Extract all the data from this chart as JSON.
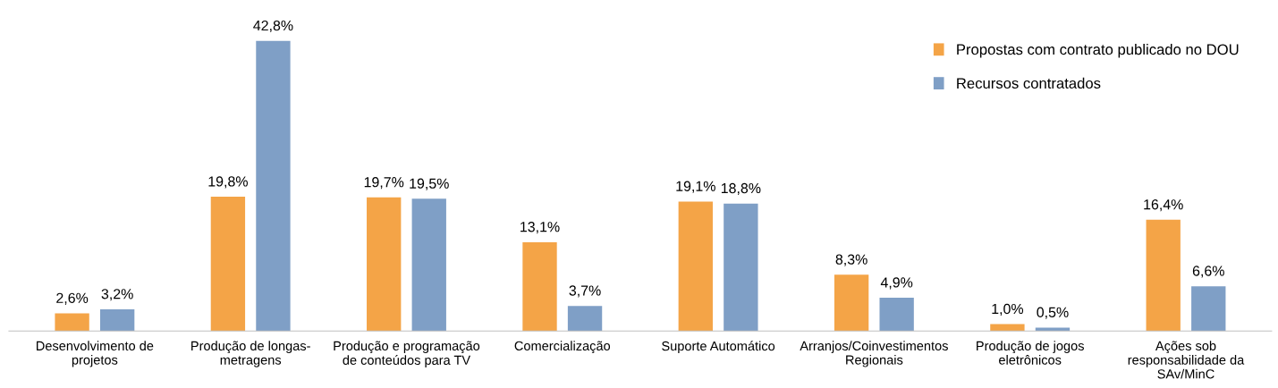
{
  "chart_data": {
    "type": "bar",
    "categories": [
      "Desenvolvimento de\nprojetos",
      "Produção de longas-\nmetragens",
      "Produção e programação\nde conteúdos para TV",
      "Comercialização",
      "Suporte Automático",
      "Arranjos/Coinvestimentos\nRegionais",
      "Produção de jogos\neletrônicos",
      "Ações sob\nresponsabilidade da\nSAv/MinC"
    ],
    "series": [
      {
        "name": "Propostas com contrato publicado no DOU",
        "color": "#f4a447",
        "values": [
          2.6,
          19.8,
          19.7,
          13.1,
          19.1,
          8.3,
          1.0,
          16.4
        ],
        "value_labels": [
          "2,6%",
          "19,8%",
          "19,7%",
          "13,1%",
          "19,1%",
          "8,3%",
          "1,0%",
          "16,4%"
        ]
      },
      {
        "name": "Recursos contratados",
        "color": "#7f9fc6",
        "values": [
          3.2,
          42.8,
          19.5,
          3.7,
          18.8,
          4.9,
          0.5,
          6.6
        ],
        "value_labels": [
          "3,2%",
          "42,8%",
          "19,5%",
          "3,7%",
          "18,8%",
          "4,9%",
          "0,5%",
          "6,6%"
        ]
      }
    ],
    "legend": "top right",
    "tick_labels": "x"
  }
}
